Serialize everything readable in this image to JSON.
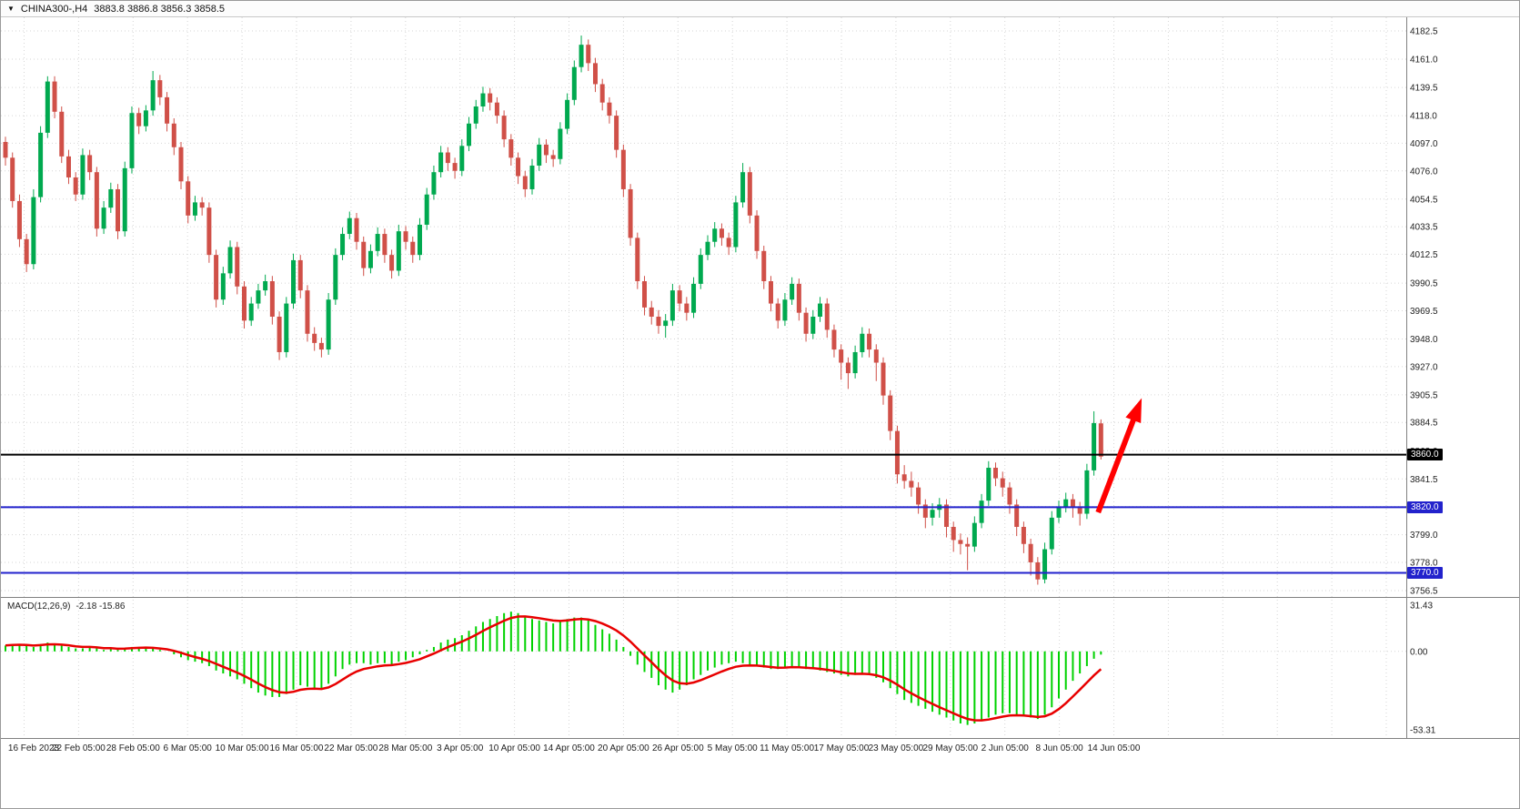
{
  "header": {
    "symbol_period": "CHINA300-,H4",
    "ohlc": "3883.8 3886.8 3856.3 3858.5"
  },
  "chart_data": {
    "type": "candlestick",
    "title": "CHINA300-,H4",
    "symbol": "CHINA300-",
    "timeframe": "H4",
    "last_ohlc": {
      "open": 3883.8,
      "high": 3886.8,
      "low": 3856.3,
      "close": 3858.5
    },
    "y_axis": {
      "min": 3756.5,
      "max": 4182.5,
      "ticks": [
        "4182.5",
        "4161.0",
        "4139.5",
        "4118.0",
        "4097.0",
        "4076.0",
        "4054.5",
        "4033.5",
        "4012.5",
        "3990.5",
        "3969.5",
        "3948.0",
        "3927.0",
        "3905.5",
        "3884.5",
        "3863.0",
        "3841.5",
        "3820.5",
        "3799.0",
        "3778.0",
        "3756.5"
      ]
    },
    "x_axis": {
      "labels": [
        "16 Feb 2023",
        "22 Feb 05:00",
        "28 Feb 05:00",
        "6 Mar 05:00",
        "10 Mar 05:00",
        "16 Mar 05:00",
        "22 Mar 05:00",
        "28 Mar 05:00",
        "3 Apr 05:00",
        "10 Apr 05:00",
        "14 Apr 05:00",
        "20 Apr 05:00",
        "26 Apr 05:00",
        "5 May 05:00",
        "11 May 05:00",
        "17 May 05:00",
        "23 May 05:00",
        "29 May 05:00",
        "2 Jun 05:00",
        "8 Jun 05:00",
        "14 Jun 05:00"
      ]
    },
    "horizontal_lines": [
      {
        "price": 3860.0,
        "label": "3860.0",
        "color": "#000000"
      },
      {
        "price": 3820.0,
        "label": "3820.0",
        "color": "#2222cc"
      },
      {
        "price": 3770.0,
        "label": "3770.0",
        "color": "#2222cc"
      }
    ],
    "arrow": {
      "from_index": 155.6,
      "from_price": 3816,
      "to_index": 161.8,
      "to_price": 3903,
      "color": "#ff0000",
      "width": 6
    },
    "colors": {
      "up": "#00a94f",
      "down": "#d05048",
      "histogram": "#00d200",
      "signal": "#e80000",
      "grid": "#d6d6d6",
      "axis_text": "#222222",
      "divider": "#808080"
    },
    "candles": [
      [
        4098,
        4102,
        4080,
        4086
      ],
      [
        4086,
        4090,
        4048,
        4053
      ],
      [
        4053,
        4058,
        4018,
        4024
      ],
      [
        4024,
        4028,
        3999,
        4005
      ],
      [
        4005,
        4062,
        4001,
        4056
      ],
      [
        4056,
        4110,
        4052,
        4105
      ],
      [
        4105,
        4148,
        4101,
        4144
      ],
      [
        4144,
        4148,
        4116,
        4121
      ],
      [
        4121,
        4125,
        4082,
        4087
      ],
      [
        4087,
        4092,
        4066,
        4071
      ],
      [
        4071,
        4075,
        4053,
        4058
      ],
      [
        4058,
        4093,
        4054,
        4088
      ],
      [
        4088,
        4092,
        4069,
        4075
      ],
      [
        4075,
        4079,
        4026,
        4032
      ],
      [
        4032,
        4053,
        4028,
        4048
      ],
      [
        4048,
        4067,
        4044,
        4062
      ],
      [
        4062,
        4066,
        4024,
        4030
      ],
      [
        4030,
        4083,
        4026,
        4078
      ],
      [
        4078,
        4125,
        4074,
        4120
      ],
      [
        4120,
        4124,
        4104,
        4110
      ],
      [
        4110,
        4126,
        4106,
        4122
      ],
      [
        4122,
        4152,
        4118,
        4145
      ],
      [
        4145,
        4149,
        4126,
        4132
      ],
      [
        4132,
        4136,
        4106,
        4112
      ],
      [
        4112,
        4116,
        4088,
        4094
      ],
      [
        4094,
        4098,
        4062,
        4068
      ],
      [
        4068,
        4072,
        4036,
        4042
      ],
      [
        4042,
        4057,
        4038,
        4052
      ],
      [
        4052,
        4056,
        4042,
        4048
      ],
      [
        4048,
        4052,
        4006,
        4012
      ],
      [
        4012,
        4016,
        3972,
        3978
      ],
      [
        3978,
        4003,
        3974,
        3998
      ],
      [
        3998,
        4023,
        3994,
        4018
      ],
      [
        4018,
        4022,
        3982,
        3988
      ],
      [
        3988,
        3992,
        3956,
        3962
      ],
      [
        3962,
        3980,
        3958,
        3975
      ],
      [
        3975,
        3990,
        3971,
        3985
      ],
      [
        3985,
        3997,
        3981,
        3992
      ],
      [
        3992,
        3996,
        3959,
        3965
      ],
      [
        3965,
        3969,
        3932,
        3938
      ],
      [
        3938,
        3980,
        3934,
        3975
      ],
      [
        3975,
        4013,
        3971,
        4008
      ],
      [
        4008,
        4012,
        3979,
        3985
      ],
      [
        3985,
        3989,
        3946,
        3952
      ],
      [
        3952,
        3957,
        3939,
        3945
      ],
      [
        3945,
        3949,
        3934,
        3940
      ],
      [
        3940,
        3983,
        3936,
        3978
      ],
      [
        3978,
        4017,
        3974,
        4012
      ],
      [
        4012,
        4033,
        4008,
        4028
      ],
      [
        4028,
        4045,
        4024,
        4040
      ],
      [
        4040,
        4044,
        4016,
        4022
      ],
      [
        4022,
        4026,
        3996,
        4002
      ],
      [
        4002,
        4020,
        3998,
        4015
      ],
      [
        4015,
        4033,
        4011,
        4028
      ],
      [
        4028,
        4032,
        4006,
        4012
      ],
      [
        4012,
        4016,
        3994,
        4000
      ],
      [
        4000,
        4035,
        3996,
        4030
      ],
      [
        4030,
        4034,
        4016,
        4022
      ],
      [
        4022,
        4026,
        4006,
        4012
      ],
      [
        4012,
        4040,
        4008,
        4035
      ],
      [
        4035,
        4063,
        4031,
        4058
      ],
      [
        4058,
        4080,
        4054,
        4075
      ],
      [
        4075,
        4095,
        4071,
        4090
      ],
      [
        4090,
        4094,
        4076,
        4082
      ],
      [
        4082,
        4086,
        4070,
        4076
      ],
      [
        4076,
        4100,
        4072,
        4095
      ],
      [
        4095,
        4117,
        4091,
        4112
      ],
      [
        4112,
        4130,
        4108,
        4125
      ],
      [
        4125,
        4140,
        4121,
        4135
      ],
      [
        4135,
        4139,
        4122,
        4128
      ],
      [
        4128,
        4132,
        4112,
        4118
      ],
      [
        4118,
        4122,
        4094,
        4100
      ],
      [
        4100,
        4104,
        4080,
        4086
      ],
      [
        4086,
        4090,
        4066,
        4072
      ],
      [
        4072,
        4076,
        4056,
        4062
      ],
      [
        4062,
        4085,
        4058,
        4080
      ],
      [
        4080,
        4101,
        4076,
        4096
      ],
      [
        4096,
        4100,
        4082,
        4088
      ],
      [
        4088,
        4092,
        4079,
        4085
      ],
      [
        4085,
        4113,
        4081,
        4108
      ],
      [
        4108,
        4135,
        4104,
        4130
      ],
      [
        4130,
        4160,
        4126,
        4155
      ],
      [
        4155,
        4179,
        4151,
        4172
      ],
      [
        4172,
        4176,
        4152,
        4158
      ],
      [
        4158,
        4162,
        4136,
        4142
      ],
      [
        4142,
        4146,
        4122,
        4128
      ],
      [
        4128,
        4132,
        4112,
        4118
      ],
      [
        4118,
        4122,
        4086,
        4092
      ],
      [
        4092,
        4096,
        4056,
        4062
      ],
      [
        4062,
        4066,
        4019,
        4025
      ],
      [
        4025,
        4029,
        3986,
        3992
      ],
      [
        3992,
        3996,
        3966,
        3972
      ],
      [
        3972,
        3977,
        3959,
        3965
      ],
      [
        3965,
        3970,
        3952,
        3958
      ],
      [
        3958,
        3967,
        3949,
        3962
      ],
      [
        3962,
        3990,
        3958,
        3985
      ],
      [
        3985,
        3989,
        3969,
        3975
      ],
      [
        3975,
        3980,
        3962,
        3968
      ],
      [
        3968,
        3995,
        3964,
        3990
      ],
      [
        3990,
        4017,
        3986,
        4012
      ],
      [
        4012,
        4027,
        4008,
        4022
      ],
      [
        4022,
        4037,
        4018,
        4032
      ],
      [
        4032,
        4036,
        4019,
        4025
      ],
      [
        4025,
        4029,
        4012,
        4018
      ],
      [
        4018,
        4057,
        4014,
        4052
      ],
      [
        4052,
        4082,
        4048,
        4075
      ],
      [
        4075,
        4079,
        4036,
        4042
      ],
      [
        4042,
        4046,
        4009,
        4015
      ],
      [
        4015,
        4019,
        3986,
        3992
      ],
      [
        3992,
        3996,
        3969,
        3975
      ],
      [
        3975,
        3979,
        3956,
        3962
      ],
      [
        3962,
        3983,
        3958,
        3978
      ],
      [
        3978,
        3995,
        3974,
        3990
      ],
      [
        3990,
        3994,
        3962,
        3968
      ],
      [
        3968,
        3972,
        3946,
        3952
      ],
      [
        3952,
        3970,
        3948,
        3965
      ],
      [
        3965,
        3980,
        3961,
        3975
      ],
      [
        3975,
        3979,
        3949,
        3955
      ],
      [
        3955,
        3959,
        3934,
        3940
      ],
      [
        3940,
        3944,
        3917,
        3930
      ],
      [
        3930,
        3934,
        3910,
        3922
      ],
      [
        3922,
        3943,
        3918,
        3938
      ],
      [
        3938,
        3957,
        3934,
        3952
      ],
      [
        3952,
        3956,
        3934,
        3940
      ],
      [
        3940,
        3944,
        3916,
        3930
      ],
      [
        3930,
        3934,
        3898,
        3905
      ],
      [
        3905,
        3909,
        3871,
        3878
      ],
      [
        3878,
        3882,
        3838,
        3845
      ],
      [
        3845,
        3852,
        3834,
        3840
      ],
      [
        3840,
        3847,
        3828,
        3835
      ],
      [
        3835,
        3839,
        3815,
        3822
      ],
      [
        3822,
        3826,
        3804,
        3812
      ],
      [
        3812,
        3823,
        3806,
        3818
      ],
      [
        3818,
        3827,
        3812,
        3822
      ],
      [
        3822,
        3826,
        3797,
        3805
      ],
      [
        3805,
        3809,
        3786,
        3795
      ],
      [
        3795,
        3800,
        3784,
        3792
      ],
      [
        3792,
        3797,
        3772,
        3790
      ],
      [
        3790,
        3813,
        3786,
        3808
      ],
      [
        3808,
        3830,
        3804,
        3825
      ],
      [
        3825,
        3855,
        3821,
        3850
      ],
      [
        3850,
        3854,
        3836,
        3842
      ],
      [
        3842,
        3847,
        3828,
        3835
      ],
      [
        3835,
        3839,
        3815,
        3822
      ],
      [
        3822,
        3826,
        3798,
        3805
      ],
      [
        3805,
        3809,
        3785,
        3792
      ],
      [
        3792,
        3796,
        3768,
        3778
      ],
      [
        3778,
        3782,
        3761,
        3765
      ],
      [
        3765,
        3793,
        3762,
        3788
      ],
      [
        3788,
        3817,
        3784,
        3812
      ],
      [
        3812,
        3825,
        3808,
        3820
      ],
      [
        3820,
        3831,
        3816,
        3826
      ],
      [
        3826,
        3830,
        3812,
        3820
      ],
      [
        3820,
        3824,
        3806,
        3815
      ],
      [
        3815,
        3853,
        3811,
        3848
      ],
      [
        3848,
        3893,
        3844,
        3884
      ],
      [
        3883.8,
        3886.8,
        3856.3,
        3858.5
      ]
    ],
    "macd": {
      "label": "MACD(12,26,9)",
      "display_values": "-2.18 -15.86",
      "value": -2.18,
      "signal_value": -15.86,
      "axis_ticks": [
        "31.43",
        "0.00",
        "-53.31"
      ],
      "axis_max": 31.43,
      "axis_min": -53.31,
      "histogram": [
        4,
        5,
        5,
        4,
        3,
        5,
        6,
        5,
        4,
        3,
        2,
        2,
        3,
        2,
        1,
        2,
        1,
        2,
        3,
        3,
        3,
        2,
        1,
        0,
        -2,
        -4,
        -6,
        -7,
        -8,
        -10,
        -13,
        -15,
        -17,
        -19,
        -22,
        -25,
        -28,
        -30,
        -31,
        -31,
        -29,
        -26,
        -23,
        -24,
        -25,
        -26,
        -22,
        -17,
        -12,
        -9,
        -8,
        -8,
        -9,
        -8,
        -8,
        -9,
        -7,
        -6,
        -4,
        -2,
        1,
        3,
        6,
        8,
        9,
        11,
        14,
        17,
        20,
        22,
        24,
        26,
        27,
        26,
        24,
        22,
        21,
        20,
        19,
        20,
        22,
        23,
        23,
        21,
        18,
        15,
        12,
        8,
        3,
        -3,
        -9,
        -14,
        -18,
        -23,
        -26,
        -28,
        -26,
        -23,
        -19,
        -16,
        -13,
        -11,
        -9,
        -8,
        -7,
        -8,
        -9,
        -10,
        -11,
        -12,
        -12,
        -11,
        -10,
        -11,
        -12,
        -12,
        -13,
        -14,
        -15,
        -16,
        -17,
        -16,
        -15,
        -16,
        -18,
        -21,
        -25,
        -29,
        -33,
        -35,
        -37,
        -39,
        -41,
        -43,
        -45,
        -47,
        -49,
        -50,
        -49,
        -47,
        -45,
        -43,
        -42,
        -42,
        -43,
        -44,
        -45,
        -46,
        -43,
        -38,
        -32,
        -26,
        -20,
        -15,
        -10,
        -5,
        -2.18
      ]
    }
  }
}
